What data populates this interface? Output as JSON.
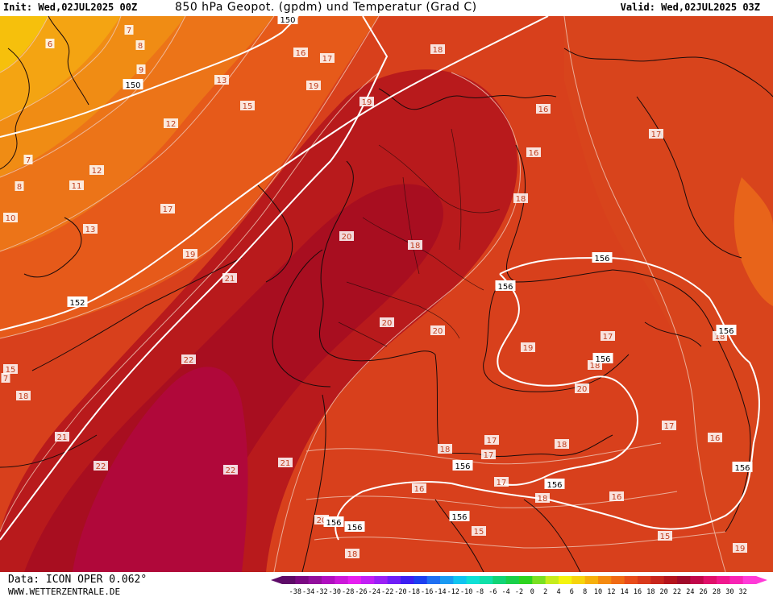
{
  "header": {
    "init": "Init: Wed,02JUL2025 00Z",
    "title": "850 hPa Geopot. (gpdm) und Temperatur (Grad C)",
    "valid": "Valid: Wed,02JUL2025 03Z"
  },
  "footer": {
    "data_source": "Data: ICON OPER 0.062°",
    "website": "WWW.WETTERZENTRALE.DE"
  },
  "legend": {
    "ticks": [
      "-38",
      "-34",
      "-32",
      "-30",
      "-28",
      "-26",
      "-24",
      "-22",
      "-20",
      "-18",
      "-16",
      "-14",
      "-12",
      "-10",
      "-8",
      "-6",
      "-4",
      "-2",
      "0",
      "2",
      "4",
      "6",
      "8",
      "10",
      "12",
      "14",
      "16",
      "18",
      "20",
      "22",
      "24",
      "26",
      "28",
      "30",
      "32"
    ],
    "colors": [
      "#5e0b68",
      "#7a0a82",
      "#92109c",
      "#b00fbf",
      "#cc18d9",
      "#e61ff0",
      "#c21ff5",
      "#9a20f6",
      "#6f1ef7",
      "#3c1ff2",
      "#1c3ff0",
      "#1f6ff2",
      "#1a9af2",
      "#10c4f0",
      "#10e0d6",
      "#10e0a8",
      "#12d476",
      "#1ad04a",
      "#2ed41f",
      "#7ae022",
      "#c6ec1c",
      "#f4f40e",
      "#f6d40c",
      "#f6b00c",
      "#f48a10",
      "#f06a14",
      "#e84c1a",
      "#d93a1c",
      "#c8261c",
      "#b4141c",
      "#a00a2a",
      "#c0084a",
      "#e0106a",
      "#f0188e",
      "#f824b4",
      "#ff3ad8"
    ]
  },
  "isotherm_labels": [
    {
      "text": "6"
    },
    {
      "text": "7"
    },
    {
      "text": "8"
    },
    {
      "text": "9"
    },
    {
      "text": "12"
    },
    {
      "text": "13"
    },
    {
      "text": "15"
    },
    {
      "text": "16"
    },
    {
      "text": "17"
    },
    {
      "text": "18"
    },
    {
      "text": "19"
    },
    {
      "text": "19"
    },
    {
      "text": "16"
    },
    {
      "text": "17"
    },
    {
      "text": "16"
    },
    {
      "text": "7"
    },
    {
      "text": "8"
    },
    {
      "text": "12"
    },
    {
      "text": "11"
    },
    {
      "text": "10"
    },
    {
      "text": "17"
    },
    {
      "text": "18"
    },
    {
      "text": "13"
    },
    {
      "text": "20"
    },
    {
      "text": "19"
    },
    {
      "text": "18"
    },
    {
      "text": "21"
    },
    {
      "text": "20"
    },
    {
      "text": "20"
    },
    {
      "text": "19"
    },
    {
      "text": "17"
    },
    {
      "text": "18"
    },
    {
      "text": "22"
    },
    {
      "text": "15"
    },
    {
      "text": "7"
    },
    {
      "text": "18"
    },
    {
      "text": "21"
    },
    {
      "text": "22"
    },
    {
      "text": "22"
    },
    {
      "text": "21"
    },
    {
      "text": "20"
    },
    {
      "text": "18"
    },
    {
      "text": "18"
    },
    {
      "text": "17"
    },
    {
      "text": "17"
    },
    {
      "text": "16"
    },
    {
      "text": "18"
    },
    {
      "text": "17"
    },
    {
      "text": "18"
    },
    {
      "text": "17"
    },
    {
      "text": "16"
    },
    {
      "text": "16"
    },
    {
      "text": "15"
    },
    {
      "text": "19"
    },
    {
      "text": "20"
    },
    {
      "text": "18"
    },
    {
      "text": "15"
    }
  ],
  "geopotential_labels": [
    {
      "text": "150"
    },
    {
      "text": "150"
    },
    {
      "text": "152"
    },
    {
      "text": "156"
    },
    {
      "text": "156"
    },
    {
      "text": "156"
    },
    {
      "text": "156"
    },
    {
      "text": "156"
    },
    {
      "text": "156"
    },
    {
      "text": "156"
    },
    {
      "text": "156"
    },
    {
      "text": "156"
    },
    {
      "text": "156"
    }
  ]
}
